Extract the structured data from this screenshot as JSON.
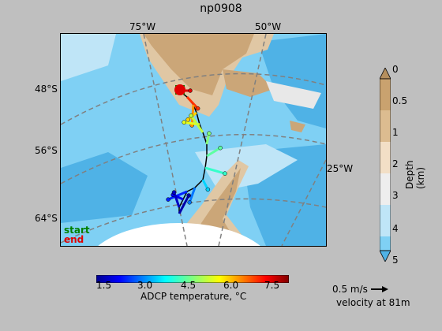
{
  "title": "np0908",
  "map": {
    "lon_labels": [
      "75°W",
      "50°W",
      "25°W"
    ],
    "lat_labels": [
      "48°S",
      "56°S",
      "64°S"
    ],
    "legend": {
      "start": "start",
      "end": "end",
      "start_color": "#008000",
      "end_color": "#e00000"
    }
  },
  "depth_colorbar": {
    "label": "Depth (km)",
    "ticks": [
      "0",
      "0.5",
      "1",
      "2",
      "3",
      "4",
      "5"
    ]
  },
  "temp_colorbar": {
    "label": "ADCP temperature, °C",
    "ticks": [
      "1.5",
      "3.0",
      "4.5",
      "6.0",
      "7.5"
    ]
  },
  "velocity_key": {
    "scale_label": "0.5 m/s",
    "depth_label": "velocity at 81m"
  },
  "colors": {
    "deep_ocean": "#4fb2e6",
    "ocean": "#7fd0f4",
    "shallow": "#bfe5f7",
    "shelf": "#e8e8e8",
    "land_light": "#e0c7a4",
    "land_mid": "#cba678",
    "land_dark": "#b58f5e"
  },
  "chart_data": {
    "type": "map",
    "title": "np0908",
    "xlabel": "ADCP temperature, °C",
    "temp_range": [
      1.0,
      8.5
    ],
    "depth_range_km": [
      0,
      5
    ],
    "depth_bounds_km": [
      0,
      0.5,
      1,
      2,
      3,
      4,
      5
    ],
    "track_temperatures_c": [
      7.8,
      7.2,
      6.5,
      6.0,
      5.5,
      5.2,
      4.8,
      4.5,
      4.2,
      3.5,
      2.8,
      2.2,
      1.8,
      1.5,
      1.3
    ],
    "velocity_reference_ms": 0.5,
    "velocity_depth_m": 81
  }
}
